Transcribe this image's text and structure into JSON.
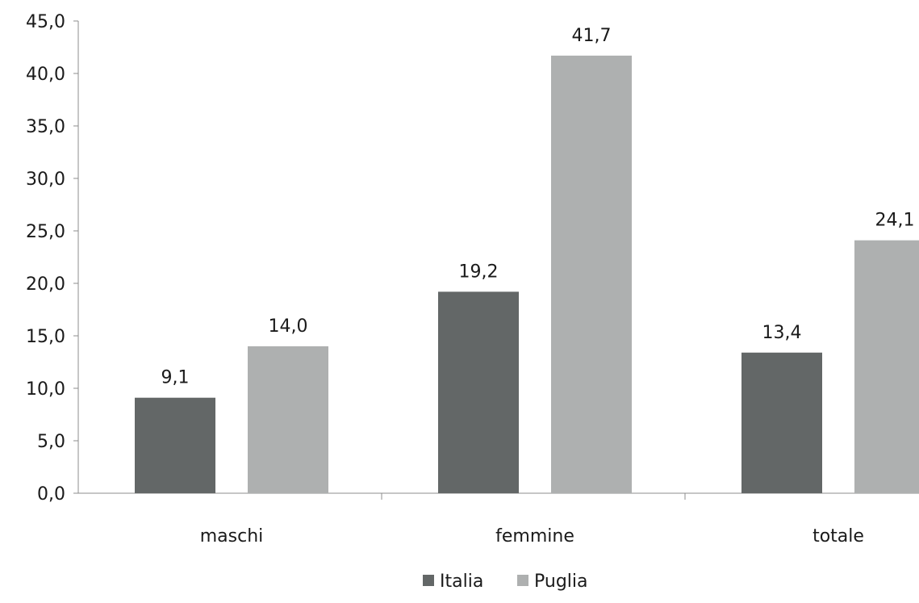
{
  "chart_data": {
    "type": "bar",
    "title": "",
    "categories": [
      "maschi",
      "femmine",
      "totale"
    ],
    "series": [
      {
        "name": "Italia",
        "values": [
          9.1,
          19.2,
          13.4
        ],
        "labels": [
          "9,1",
          "19,2",
          "13,4"
        ]
      },
      {
        "name": "Puglia",
        "values": [
          14.0,
          41.7,
          24.1
        ],
        "labels": [
          "14,0",
          "41,7",
          "24,1"
        ]
      }
    ],
    "ylim": [
      0,
      45
    ],
    "y_ticks": [
      {
        "value": 0,
        "label": "0,0"
      },
      {
        "value": 5,
        "label": "5,0"
      },
      {
        "value": 10,
        "label": "10,0"
      },
      {
        "value": 15,
        "label": "15,0"
      },
      {
        "value": 20,
        "label": "20,0"
      },
      {
        "value": 25,
        "label": "25,0"
      },
      {
        "value": 30,
        "label": "30,0"
      },
      {
        "value": 35,
        "label": "35,0"
      },
      {
        "value": 40,
        "label": "40,0"
      },
      {
        "value": 45,
        "label": "45,0"
      }
    ],
    "xlabel": "",
    "ylabel": "",
    "grid": false,
    "legend_position": "bottom",
    "colors": {
      "Italia": "#636767",
      "Puglia": "#aeb0b0",
      "axis": "#8c8c8c",
      "title": "#8cc63f"
    }
  }
}
